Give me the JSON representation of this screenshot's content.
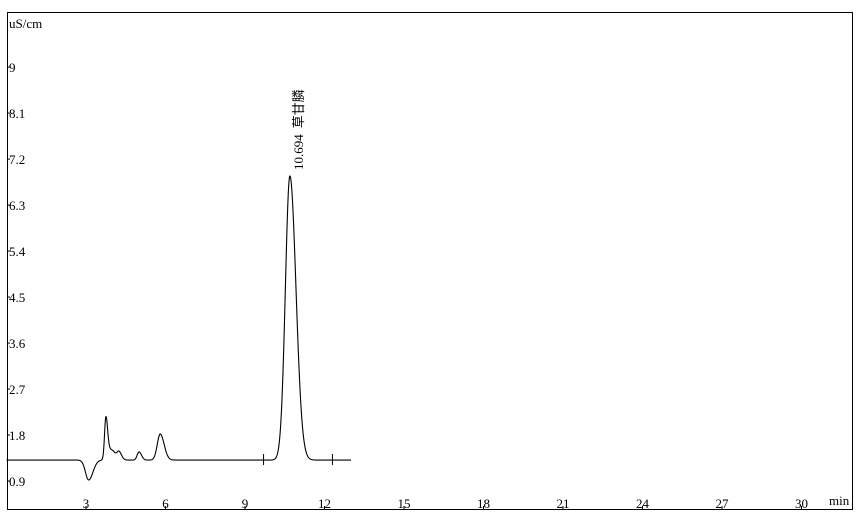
{
  "chart_data": {
    "type": "line",
    "ylabel": "uS/cm",
    "xlabel": "min",
    "xlim": [
      0,
      31.7
    ],
    "ylim": [
      0.33,
      10.1
    ],
    "x_ticks": [
      3,
      6,
      9,
      12,
      15,
      18,
      21,
      24,
      27,
      30
    ],
    "y_ticks": [
      0.9,
      1.8,
      2.7,
      3.6,
      4.5,
      5.4,
      6.3,
      7.2,
      8.1,
      9
    ],
    "grid": false,
    "baseline": 1.31,
    "trace_range": [
      0,
      13.0
    ],
    "peaks": [
      {
        "rt": 3.1,
        "height": -0.39,
        "width": 0.12
      },
      {
        "rt": 3.75,
        "height": 0.8,
        "width": 0.05
      },
      {
        "rt": 3.95,
        "height": 0.2,
        "width": 0.12
      },
      {
        "rt": 4.25,
        "height": 0.14,
        "width": 0.07
      },
      {
        "rt": 5.0,
        "height": 0.16,
        "width": 0.07
      },
      {
        "rt": 5.8,
        "height": 0.51,
        "width": 0.11
      },
      {
        "rt": 10.694,
        "height": 5.56,
        "width": 0.17
      }
    ],
    "integration_marks": [
      9.7,
      12.3
    ],
    "annotations": [
      {
        "rt": 10.694,
        "label": "10.694",
        "compound": "草甘膦"
      }
    ]
  }
}
